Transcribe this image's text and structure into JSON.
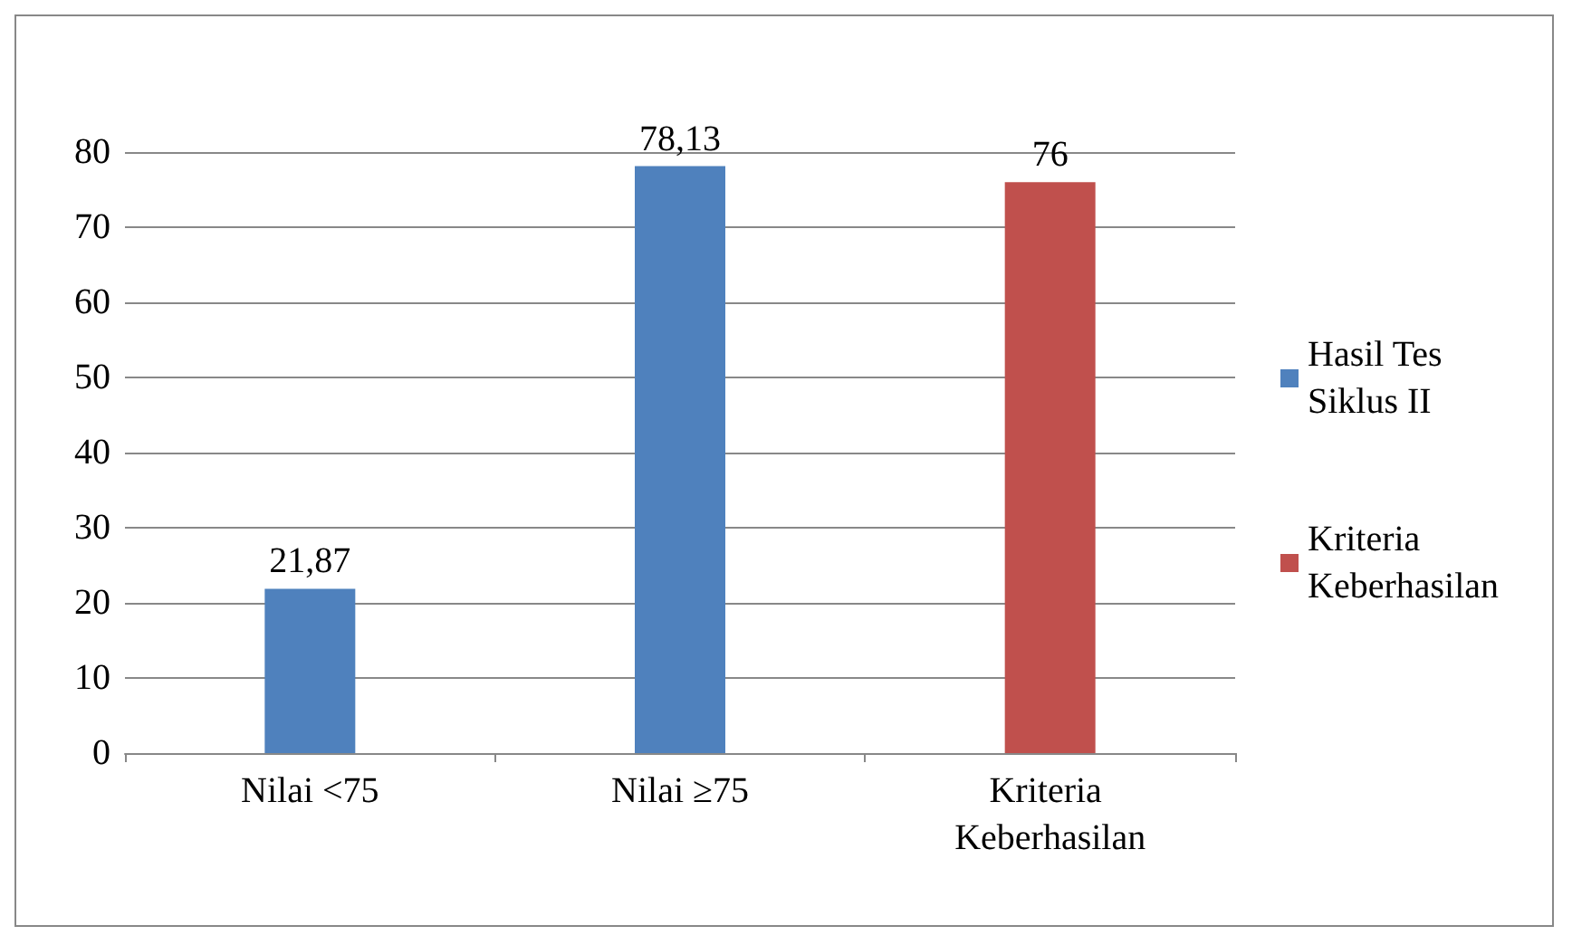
{
  "chart_data": {
    "type": "bar",
    "categories": [
      "Nilai <75",
      "Nilai ≥75",
      "Kriteria Keberhasilan"
    ],
    "series": [
      {
        "name": "Hasil Tes Siklus II",
        "color": "#4f81bd",
        "values": [
          21.87,
          78.13,
          null
        ],
        "value_labels": [
          "21,87",
          "78,13",
          null
        ]
      },
      {
        "name": "Kriteria Keberhasilan",
        "color": "#c0504d",
        "values": [
          null,
          null,
          76
        ],
        "value_labels": [
          null,
          null,
          "76"
        ]
      }
    ],
    "ylim": [
      0,
      80
    ],
    "yticks": [
      0,
      10,
      20,
      30,
      40,
      50,
      60,
      70,
      80
    ],
    "grid": "y",
    "legend": "right"
  }
}
